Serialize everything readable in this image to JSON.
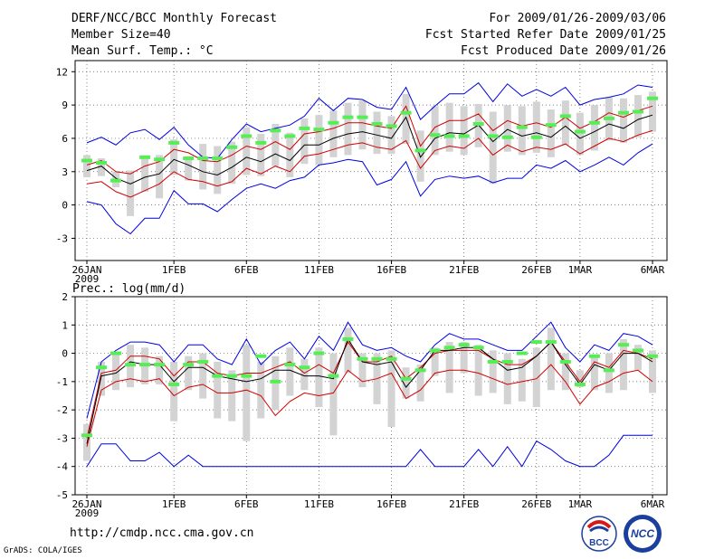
{
  "header": {
    "title": "DERF/NCC/BCC Monthly Forecast",
    "member_size": "Member Size=40",
    "variable": "Mean Surf. Temp.: °C",
    "period": "For 2009/01/26-2009/03/06",
    "fcst_started": "Fcst Started Refer Date 2009/01/25",
    "fcst_produced": "Fcst Produced Date 2009/01/26"
  },
  "footer": {
    "url": "http://cmdp.ncc.cma.gov.cn",
    "credit": "GrADS: COLA/IGES",
    "logo_bcc_text": "BCC",
    "logo_ncc_text": "NCC"
  },
  "colors": {
    "ensemble_mean": "#000000",
    "spread_band": "#d00000",
    "extreme_band": "#0000e0",
    "member_box": "#d3d3d3",
    "median_marker": "#55ee55",
    "grid": "#555555"
  },
  "chart_data": [
    {
      "type": "line",
      "name": "temperature",
      "title": "Mean Surf. Temp.: °C",
      "ylabel": "°C",
      "ylim": [
        -5,
        13
      ],
      "yticks": [
        -3,
        0,
        3,
        6,
        9,
        12
      ],
      "x_days": [
        0,
        1,
        2,
        3,
        4,
        5,
        6,
        7,
        8,
        9,
        10,
        11,
        12,
        13,
        14,
        15,
        16,
        17,
        18,
        19,
        20,
        21,
        22,
        23,
        24,
        25,
        26,
        27,
        28,
        29,
        30,
        31,
        32,
        33,
        34,
        35,
        36,
        37,
        38,
        39
      ],
      "x_tick_labels": [
        {
          "day": 0,
          "label": "26JAN"
        },
        {
          "day": 6,
          "label": "1FEB"
        },
        {
          "day": 11,
          "label": "6FEB"
        },
        {
          "day": 16,
          "label": "11FEB"
        },
        {
          "day": 21,
          "label": "16FEB"
        },
        {
          "day": 26,
          "label": "21FEB"
        },
        {
          "day": 31,
          "label": "26FEB"
        },
        {
          "day": 34,
          "label": "1MAR"
        },
        {
          "day": 39,
          "label": "6MAR"
        }
      ],
      "year_label": "2009",
      "series": [
        {
          "name": "max",
          "color": "#0000e0",
          "values": [
            5.6,
            6.1,
            5.4,
            6.5,
            6.8,
            5.9,
            7.0,
            5.4,
            4.3,
            4.2,
            5.9,
            7.3,
            6.6,
            6.9,
            7.2,
            8.0,
            9.6,
            8.5,
            9.6,
            9.5,
            8.8,
            8.6,
            10.6,
            7.7,
            8.9,
            10.0,
            10.0,
            11.0,
            9.3,
            10.9,
            9.8,
            10.4,
            9.8,
            10.6,
            9.0,
            9.5,
            9.7,
            10.0,
            10.8,
            10.6
          ]
        },
        {
          "name": "upper",
          "color": "#d00000",
          "values": [
            3.6,
            4.0,
            3.0,
            2.8,
            3.5,
            3.9,
            5.0,
            4.7,
            4.0,
            3.9,
            4.5,
            5.3,
            5.0,
            5.7,
            5.0,
            6.4,
            6.6,
            6.9,
            7.4,
            7.4,
            7.1,
            6.9,
            8.9,
            5.3,
            7.0,
            7.6,
            7.6,
            8.2,
            6.7,
            7.6,
            7.1,
            7.4,
            7.0,
            7.9,
            6.9,
            7.5,
            8.3,
            7.9,
            8.5,
            8.9
          ]
        },
        {
          "name": "mean",
          "color": "#000000",
          "values": [
            3.1,
            3.5,
            2.4,
            1.9,
            2.5,
            2.8,
            4.1,
            3.6,
            3.0,
            2.7,
            3.4,
            4.3,
            3.9,
            4.6,
            4.0,
            5.4,
            5.4,
            6.0,
            6.4,
            6.6,
            6.3,
            6.0,
            7.9,
            4.3,
            6.0,
            6.5,
            6.4,
            7.2,
            5.7,
            6.8,
            6.2,
            6.5,
            6.1,
            7.1,
            6.0,
            6.6,
            7.3,
            6.9,
            7.7,
            8.1
          ]
        },
        {
          "name": "lower",
          "color": "#d00000",
          "values": [
            1.9,
            2.1,
            1.2,
            0.7,
            1.3,
            1.9,
            3.0,
            2.3,
            2.1,
            1.7,
            2.1,
            3.3,
            2.8,
            3.5,
            3.0,
            4.4,
            4.6,
            5.0,
            5.4,
            5.6,
            5.2,
            5.0,
            5.8,
            3.3,
            4.9,
            5.3,
            5.1,
            6.0,
            4.5,
            5.4,
            4.8,
            5.2,
            5.0,
            5.5,
            4.6,
            5.3,
            6.0,
            5.7,
            6.3,
            6.7
          ]
        },
        {
          "name": "min",
          "color": "#0000e0",
          "values": [
            0.3,
            0.0,
            -1.7,
            -2.6,
            -1.2,
            -1.2,
            1.3,
            0.1,
            0.1,
            -0.6,
            0.5,
            1.5,
            1.9,
            1.5,
            2.2,
            2.5,
            3.6,
            3.8,
            4.1,
            3.9,
            1.8,
            2.3,
            3.9,
            0.8,
            2.3,
            2.6,
            2.4,
            2.6,
            2.0,
            2.4,
            2.4,
            3.6,
            3.3,
            4.0,
            3.0,
            3.6,
            4.3,
            3.6,
            4.7,
            5.5
          ]
        }
      ],
      "box_spread": {
        "low": [
          2.5,
          2.6,
          1.6,
          -1.0,
          1.2,
          0.6,
          2.7,
          2.2,
          1.4,
          1.0,
          1.9,
          2.7,
          2.6,
          3.5,
          2.5,
          3.7,
          3.6,
          4.3,
          4.5,
          5.0,
          4.6,
          4.6,
          5.5,
          2.1,
          4.5,
          4.8,
          4.5,
          5.2,
          1.9,
          4.8,
          4.5,
          4.7,
          4.3,
          5.4,
          4.5,
          4.9,
          5.8,
          5.6,
          6.1,
          6.6
        ],
        "high": [
          4.5,
          4.2,
          3.0,
          3.1,
          4.2,
          4.5,
          5.9,
          4.4,
          5.5,
          5.3,
          5.7,
          7.0,
          6.4,
          7.3,
          6.5,
          7.8,
          8.1,
          8.5,
          9.2,
          9.4,
          8.4,
          8.0,
          10.0,
          6.7,
          8.9,
          9.2,
          8.9,
          9.1,
          8.4,
          9.0,
          8.9,
          9.3,
          8.6,
          9.4,
          8.3,
          9.0,
          9.7,
          9.6,
          9.9,
          10.2
        ]
      },
      "median_markers": [
        4.0,
        3.8,
        2.2,
        null,
        4.3,
        4.1,
        5.6,
        4.2,
        4.2,
        4.2,
        5.2,
        6.2,
        5.6,
        6.7,
        6.2,
        6.9,
        6.8,
        7.4,
        7.9,
        7.9,
        7.3,
        7.1,
        8.3,
        4.9,
        6.3,
        6.2,
        6.2,
        7.3,
        6.2,
        6.1,
        7.0,
        6.1,
        7.2,
        8.0,
        6.6,
        7.4,
        7.8,
        8.3,
        8.4,
        9.6
      ]
    },
    {
      "type": "line",
      "name": "precipitation",
      "title": "Prec.: log(mm/d)",
      "ylabel": "log(mm/d)",
      "ylim": [
        -5,
        2
      ],
      "yticks": [
        -5,
        -4,
        -3,
        -2,
        -1,
        0,
        1,
        2
      ],
      "x_days": [
        0,
        1,
        2,
        3,
        4,
        5,
        6,
        7,
        8,
        9,
        10,
        11,
        12,
        13,
        14,
        15,
        16,
        17,
        18,
        19,
        20,
        21,
        22,
        23,
        24,
        25,
        26,
        27,
        28,
        29,
        30,
        31,
        32,
        33,
        34,
        35,
        36,
        37,
        38,
        39
      ],
      "x_tick_labels": [
        {
          "day": 0,
          "label": "26JAN"
        },
        {
          "day": 6,
          "label": "1FEB"
        },
        {
          "day": 11,
          "label": "6FEB"
        },
        {
          "day": 16,
          "label": "11FEB"
        },
        {
          "day": 21,
          "label": "16FEB"
        },
        {
          "day": 26,
          "label": "21FEB"
        },
        {
          "day": 31,
          "label": "26FEB"
        },
        {
          "day": 34,
          "label": "1MAR"
        },
        {
          "day": 39,
          "label": "6MAR"
        }
      ],
      "year_label": "2009",
      "series": [
        {
          "name": "max",
          "color": "#0000e0",
          "values": [
            -2.3,
            -0.3,
            0.1,
            0.4,
            0.4,
            0.3,
            -0.3,
            0.3,
            0.3,
            -0.2,
            -0.4,
            0.5,
            -0.4,
            0.1,
            0.4,
            -0.2,
            0.6,
            0.1,
            1.1,
            0.3,
            0.1,
            0.2,
            -0.1,
            -0.3,
            0.3,
            0.7,
            0.5,
            0.5,
            0.3,
            0.1,
            0.1,
            0.6,
            1.1,
            0.2,
            -0.3,
            0.3,
            0.1,
            0.7,
            0.6,
            0.3
          ]
        },
        {
          "name": "upper",
          "color": "#d00000",
          "values": [
            -3.0,
            -0.7,
            -0.6,
            -0.1,
            -0.1,
            -0.2,
            -0.8,
            -0.3,
            -0.3,
            -0.7,
            -0.8,
            -0.7,
            -0.7,
            -0.5,
            -0.3,
            -0.7,
            -0.4,
            -0.7,
            0.4,
            -0.3,
            -0.3,
            -0.1,
            -0.9,
            -0.5,
            0.0,
            0.1,
            0.1,
            0.1,
            -0.2,
            -0.4,
            -0.4,
            -0.1,
            0.4,
            -0.3,
            -1.0,
            -0.3,
            -0.5,
            0.1,
            0.0,
            -0.2
          ]
        },
        {
          "name": "mean",
          "color": "#000000",
          "values": [
            -3.2,
            -0.8,
            -0.7,
            -0.3,
            -0.4,
            -0.4,
            -1.0,
            -0.5,
            -0.5,
            -0.8,
            -0.9,
            -1.0,
            -0.9,
            -0.6,
            -0.6,
            -0.8,
            -0.8,
            -0.9,
            0.5,
            -0.3,
            -0.4,
            -0.3,
            -1.2,
            -0.6,
            0.1,
            0.1,
            0.2,
            0.2,
            -0.2,
            -0.6,
            -0.5,
            -0.1,
            0.4,
            -0.4,
            -1.1,
            -0.4,
            -0.6,
            0.0,
            0.0,
            -0.3
          ]
        },
        {
          "name": "lower",
          "color": "#d00000",
          "values": [
            -3.3,
            -1.3,
            -1.0,
            -0.9,
            -1.0,
            -0.9,
            -1.5,
            -1.2,
            -1.1,
            -1.4,
            -1.4,
            -1.3,
            -1.5,
            -2.2,
            -1.7,
            -1.4,
            -1.5,
            -1.4,
            -0.6,
            -1.0,
            -0.9,
            -0.7,
            -1.6,
            -1.3,
            -0.7,
            -0.6,
            -0.6,
            -0.7,
            -0.9,
            -1.1,
            -1.0,
            -0.9,
            -0.4,
            -1.0,
            -1.8,
            -1.2,
            -1.0,
            -0.7,
            -0.6,
            -1.0
          ]
        },
        {
          "name": "min",
          "color": "#0000e0",
          "values": [
            -4.0,
            -3.2,
            -3.2,
            -3.8,
            -3.8,
            -3.5,
            -4.0,
            -3.6,
            -4.0,
            -4.0,
            -4.0,
            -4.0,
            -4.0,
            -4.0,
            -4.0,
            -4.0,
            -4.0,
            -4.0,
            -4.0,
            -4.0,
            -4.0,
            -4.0,
            -4.0,
            -3.4,
            -4.0,
            -4.0,
            -4.0,
            -3.4,
            -4.0,
            -3.3,
            -4.0,
            -3.1,
            -3.4,
            -3.8,
            -4.0,
            -4.0,
            -3.6,
            -2.9,
            -2.9,
            -2.9
          ]
        }
      ],
      "box_spread": {
        "low": [
          -3.8,
          -1.5,
          -1.3,
          -1.2,
          -1.1,
          -1.1,
          -2.4,
          -1.3,
          -1.6,
          -2.3,
          -2.4,
          -3.1,
          -2.3,
          -2.0,
          -1.5,
          -1.3,
          -1.9,
          -2.9,
          -0.7,
          -1.2,
          -1.8,
          -2.6,
          -1.6,
          -1.7,
          -0.8,
          -1.4,
          -0.7,
          -1.5,
          -1.4,
          -1.8,
          -1.7,
          -1.9,
          -1.3,
          -1.3,
          -1.2,
          -1.3,
          -1.4,
          -1.3,
          -0.6,
          -1.4
        ],
        "high": [
          -2.5,
          -0.3,
          0.0,
          0.3,
          0.2,
          -0.1,
          -0.3,
          -0.1,
          0.0,
          -0.3,
          -0.6,
          0.3,
          -0.3,
          -0.1,
          0.2,
          -0.2,
          0.2,
          0.0,
          0.9,
          0.0,
          0.0,
          0.1,
          -0.5,
          -0.4,
          0.2,
          0.4,
          0.4,
          0.3,
          0.1,
          0.0,
          -0.2,
          0.2,
          0.9,
          0.0,
          -0.6,
          -0.1,
          0.0,
          0.5,
          0.3,
          0.1
        ]
      },
      "median_markers": [
        -2.9,
        -0.5,
        0.0,
        -0.4,
        -0.4,
        -0.4,
        -1.1,
        -0.4,
        -0.3,
        -0.8,
        -0.8,
        -0.8,
        -0.1,
        -1.0,
        -0.4,
        -0.5,
        0.0,
        -0.8,
        0.5,
        -0.2,
        -0.2,
        -0.2,
        -0.9,
        -0.6,
        0.1,
        0.2,
        0.3,
        0.2,
        -0.3,
        -0.3,
        0.0,
        0.4,
        0.4,
        -0.3,
        -1.1,
        -0.1,
        -0.6,
        0.3,
        0.1,
        -0.1
      ]
    }
  ]
}
